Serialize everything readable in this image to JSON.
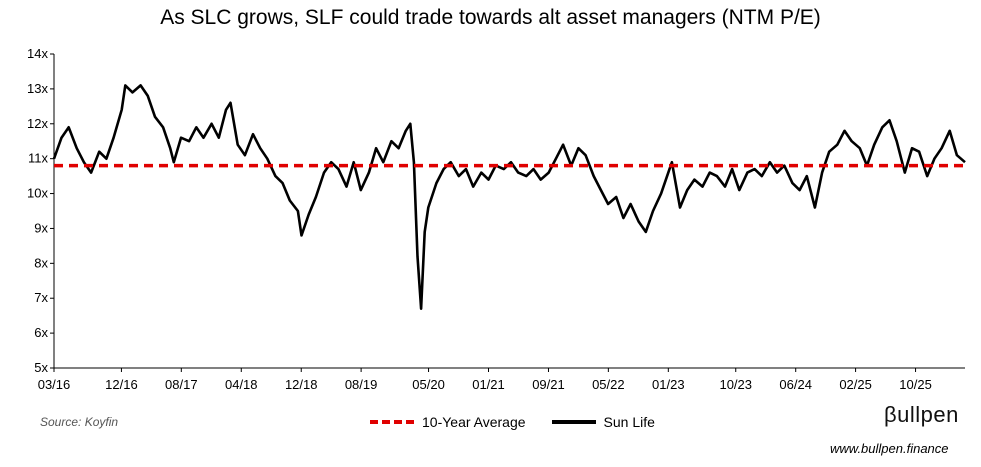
{
  "chart_data": {
    "type": "line",
    "title": "As SLC grows, SLF could trade towards alt asset managers (NTM P/E)",
    "xlabel": "",
    "ylabel": "",
    "ylim": [
      5,
      14
    ],
    "y_ticks": [
      {
        "value": 14,
        "label": "14x"
      },
      {
        "value": 13,
        "label": "13x"
      },
      {
        "value": 12,
        "label": "12x"
      },
      {
        "value": 11,
        "label": "11x"
      },
      {
        "value": 10,
        "label": "10x"
      },
      {
        "value": 9,
        "label": "9x"
      },
      {
        "value": 8,
        "label": "8x"
      },
      {
        "value": 7,
        "label": "7x"
      },
      {
        "value": 6,
        "label": "6x"
      },
      {
        "value": 5,
        "label": "5x"
      }
    ],
    "x_ticks": [
      {
        "t": 2016.167,
        "label": "03/16"
      },
      {
        "t": 2016.917,
        "label": "12/16"
      },
      {
        "t": 2017.583,
        "label": "08/17"
      },
      {
        "t": 2018.25,
        "label": "04/18"
      },
      {
        "t": 2018.917,
        "label": "12/18"
      },
      {
        "t": 2019.583,
        "label": "08/19"
      },
      {
        "t": 2020.333,
        "label": "05/20"
      },
      {
        "t": 2021.0,
        "label": "01/21"
      },
      {
        "t": 2021.667,
        "label": "09/21"
      },
      {
        "t": 2022.333,
        "label": "05/22"
      },
      {
        "t": 2023.0,
        "label": "01/23"
      },
      {
        "t": 2023.75,
        "label": "10/23"
      },
      {
        "t": 2024.417,
        "label": "06/24"
      },
      {
        "t": 2025.083,
        "label": "02/25"
      },
      {
        "t": 2025.75,
        "label": "10/25"
      }
    ],
    "xlim": [
      2016.167,
      2026.3
    ],
    "grid": false,
    "series": [
      {
        "name": "Sun Life",
        "style": "solid",
        "color": "#000000",
        "points": [
          [
            2016.167,
            11.0
          ],
          [
            2016.25,
            11.6
          ],
          [
            2016.33,
            11.9
          ],
          [
            2016.42,
            11.3
          ],
          [
            2016.5,
            10.9
          ],
          [
            2016.58,
            10.6
          ],
          [
            2016.67,
            11.2
          ],
          [
            2016.75,
            11.0
          ],
          [
            2016.83,
            11.6
          ],
          [
            2016.92,
            12.4
          ],
          [
            2016.96,
            13.1
          ],
          [
            2017.04,
            12.9
          ],
          [
            2017.13,
            13.1
          ],
          [
            2017.21,
            12.8
          ],
          [
            2017.29,
            12.2
          ],
          [
            2017.38,
            11.9
          ],
          [
            2017.46,
            11.3
          ],
          [
            2017.5,
            10.9
          ],
          [
            2017.58,
            11.6
          ],
          [
            2017.67,
            11.5
          ],
          [
            2017.75,
            11.9
          ],
          [
            2017.83,
            11.6
          ],
          [
            2017.92,
            12.0
          ],
          [
            2018.0,
            11.6
          ],
          [
            2018.08,
            12.4
          ],
          [
            2018.13,
            12.6
          ],
          [
            2018.21,
            11.4
          ],
          [
            2018.29,
            11.1
          ],
          [
            2018.38,
            11.7
          ],
          [
            2018.46,
            11.3
          ],
          [
            2018.54,
            11.0
          ],
          [
            2018.63,
            10.5
          ],
          [
            2018.71,
            10.3
          ],
          [
            2018.79,
            9.8
          ],
          [
            2018.88,
            9.5
          ],
          [
            2018.92,
            8.8
          ],
          [
            2019.0,
            9.4
          ],
          [
            2019.08,
            9.9
          ],
          [
            2019.17,
            10.6
          ],
          [
            2019.25,
            10.9
          ],
          [
            2019.33,
            10.7
          ],
          [
            2019.42,
            10.2
          ],
          [
            2019.5,
            10.9
          ],
          [
            2019.58,
            10.1
          ],
          [
            2019.67,
            10.6
          ],
          [
            2019.75,
            11.3
          ],
          [
            2019.83,
            10.9
          ],
          [
            2019.92,
            11.5
          ],
          [
            2020.0,
            11.3
          ],
          [
            2020.08,
            11.8
          ],
          [
            2020.13,
            12.0
          ],
          [
            2020.17,
            10.9
          ],
          [
            2020.21,
            8.2
          ],
          [
            2020.25,
            6.7
          ],
          [
            2020.29,
            8.9
          ],
          [
            2020.33,
            9.6
          ],
          [
            2020.42,
            10.3
          ],
          [
            2020.5,
            10.7
          ],
          [
            2020.58,
            10.9
          ],
          [
            2020.67,
            10.5
          ],
          [
            2020.75,
            10.7
          ],
          [
            2020.83,
            10.2
          ],
          [
            2020.92,
            10.6
          ],
          [
            2021.0,
            10.4
          ],
          [
            2021.08,
            10.8
          ],
          [
            2021.17,
            10.7
          ],
          [
            2021.25,
            10.9
          ],
          [
            2021.33,
            10.6
          ],
          [
            2021.42,
            10.5
          ],
          [
            2021.5,
            10.7
          ],
          [
            2021.58,
            10.4
          ],
          [
            2021.67,
            10.6
          ],
          [
            2021.75,
            11.0
          ],
          [
            2021.83,
            11.4
          ],
          [
            2021.92,
            10.8
          ],
          [
            2022.0,
            11.3
          ],
          [
            2022.08,
            11.1
          ],
          [
            2022.17,
            10.5
          ],
          [
            2022.25,
            10.1
          ],
          [
            2022.33,
            9.7
          ],
          [
            2022.42,
            9.9
          ],
          [
            2022.5,
            9.3
          ],
          [
            2022.58,
            9.7
          ],
          [
            2022.67,
            9.2
          ],
          [
            2022.75,
            8.9
          ],
          [
            2022.83,
            9.5
          ],
          [
            2022.92,
            10.0
          ],
          [
            2023.0,
            10.6
          ],
          [
            2023.04,
            10.9
          ],
          [
            2023.13,
            9.6
          ],
          [
            2023.21,
            10.1
          ],
          [
            2023.29,
            10.4
          ],
          [
            2023.38,
            10.2
          ],
          [
            2023.46,
            10.6
          ],
          [
            2023.54,
            10.5
          ],
          [
            2023.63,
            10.2
          ],
          [
            2023.71,
            10.7
          ],
          [
            2023.79,
            10.1
          ],
          [
            2023.88,
            10.6
          ],
          [
            2023.96,
            10.7
          ],
          [
            2024.04,
            10.5
          ],
          [
            2024.13,
            10.9
          ],
          [
            2024.21,
            10.6
          ],
          [
            2024.29,
            10.8
          ],
          [
            2024.38,
            10.3
          ],
          [
            2024.46,
            10.1
          ],
          [
            2024.54,
            10.5
          ],
          [
            2024.63,
            9.6
          ],
          [
            2024.71,
            10.6
          ],
          [
            2024.79,
            11.2
          ],
          [
            2024.88,
            11.4
          ],
          [
            2024.96,
            11.8
          ],
          [
            2025.04,
            11.5
          ],
          [
            2025.13,
            11.3
          ],
          [
            2025.21,
            10.8
          ],
          [
            2025.29,
            11.4
          ],
          [
            2025.38,
            11.9
          ],
          [
            2025.46,
            12.1
          ],
          [
            2025.54,
            11.5
          ],
          [
            2025.63,
            10.6
          ],
          [
            2025.71,
            11.3
          ],
          [
            2025.79,
            11.2
          ],
          [
            2025.88,
            10.5
          ],
          [
            2025.96,
            11.0
          ],
          [
            2026.04,
            11.3
          ],
          [
            2026.13,
            11.8
          ],
          [
            2026.21,
            11.1
          ],
          [
            2026.3,
            10.9
          ]
        ]
      },
      {
        "name": "10-Year Average",
        "style": "dashed",
        "color": "#e00000",
        "points": [
          [
            2016.167,
            10.8
          ],
          [
            2026.3,
            10.8
          ]
        ]
      }
    ]
  },
  "legend": {
    "average_label": "10-Year Average",
    "sunlife_label": "Sun Life"
  },
  "source": "Source: Koyfin",
  "brand": "βullpen",
  "website": "www.bullpen.finance"
}
